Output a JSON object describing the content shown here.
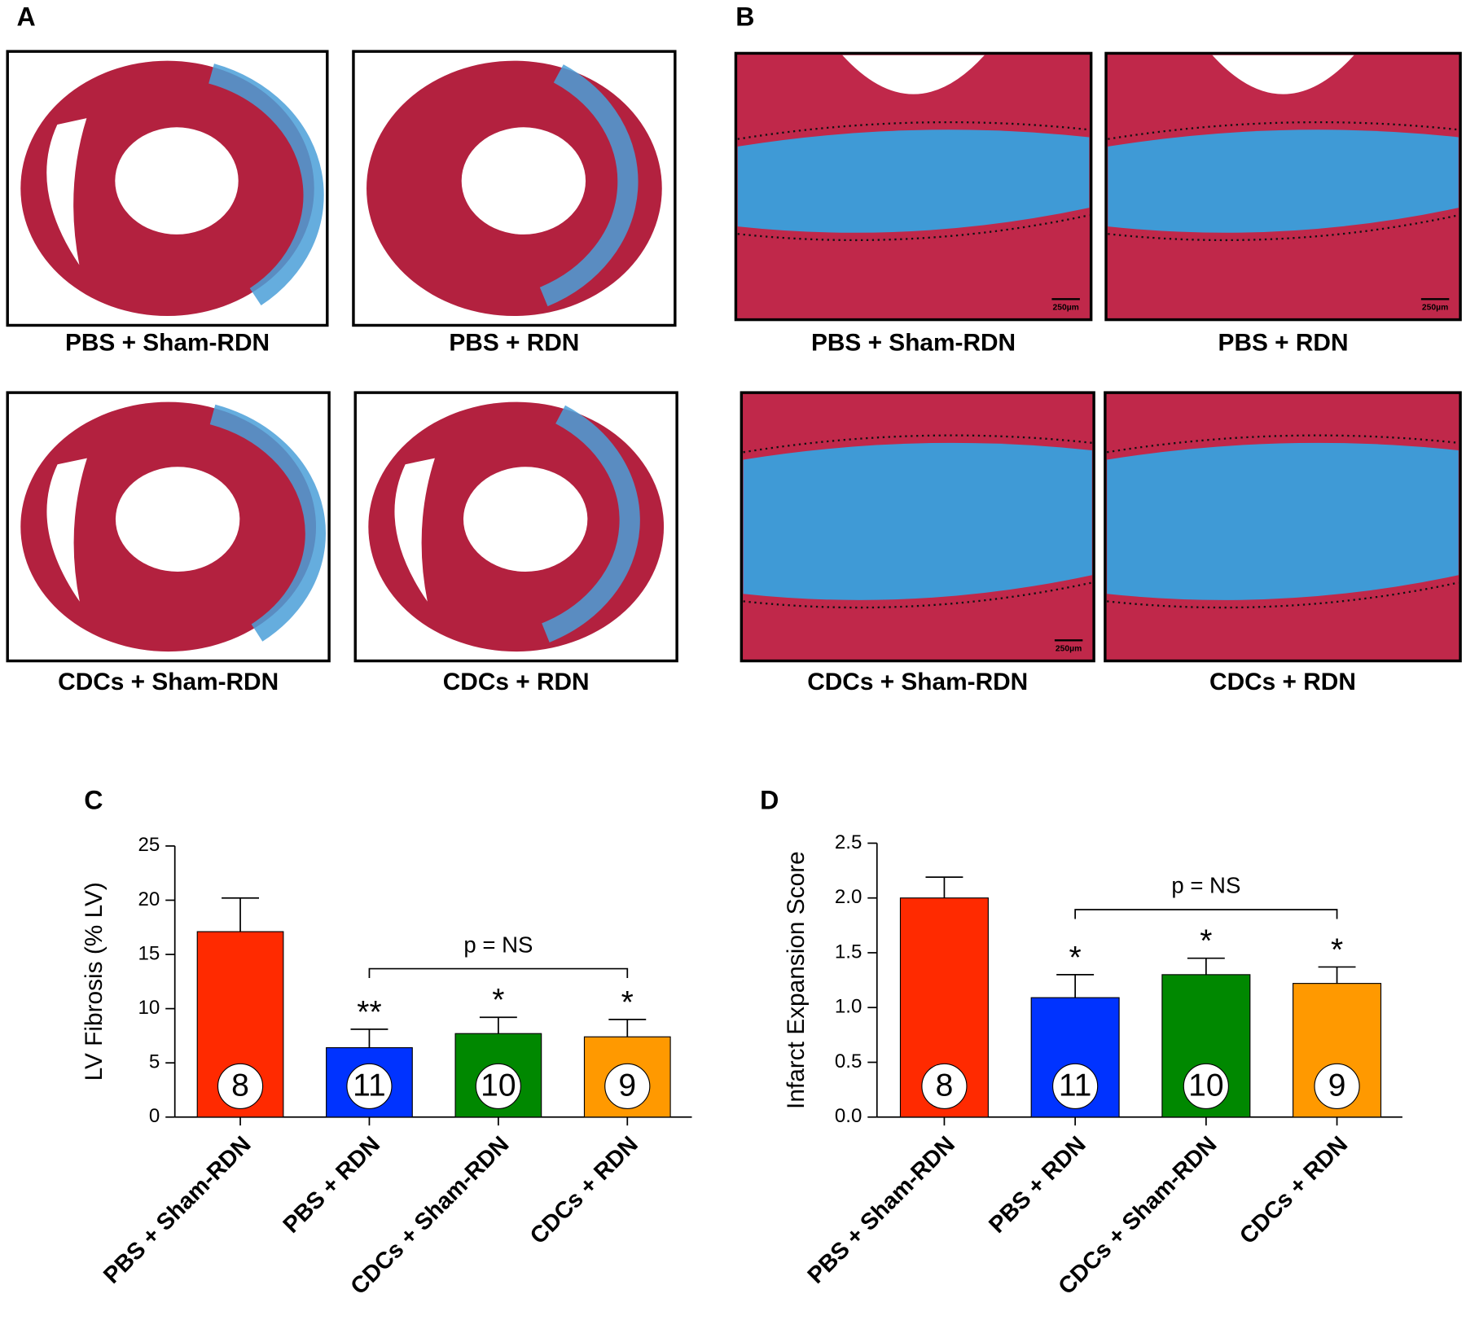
{
  "panels": [
    {
      "letter": "A",
      "captions": [
        "PBS + Sham-RDN",
        "PBS + RDN",
        "CDCs + Sham-RDN",
        "CDCs + RDN"
      ]
    },
    {
      "letter": "B",
      "captions": [
        "PBS + Sham-RDN",
        "PBS + RDN",
        "CDCs + Sham-RDN",
        "CDCs + RDN"
      ],
      "scale_bar": "250µm"
    }
  ],
  "chart_data": [
    {
      "type": "bar",
      "panel": "C",
      "y_label": "LV Fibrosis (% LV)",
      "categories": [
        "PBS + Sham-RDN",
        "PBS + RDN",
        "CDCs + Sham-RDN",
        "CDCs + RDN"
      ],
      "values": [
        17.1,
        6.4,
        7.7,
        7.4
      ],
      "errors": [
        3.1,
        1.7,
        1.5,
        1.6
      ],
      "n": [
        8,
        11,
        10,
        9
      ],
      "significance": [
        null,
        "**",
        "*",
        "*"
      ],
      "colors": [
        "#ff2a00",
        "#0033ff",
        "#008800",
        "#ff9900"
      ],
      "bracket": {
        "label": "p = NS",
        "span": [
          1,
          3
        ]
      },
      "ylim": [
        0,
        25
      ],
      "yticks": [
        0,
        5,
        10,
        15,
        20,
        25
      ]
    },
    {
      "type": "bar",
      "panel": "D",
      "y_label": "Infarct Expansion Score",
      "categories": [
        "PBS + Sham-RDN",
        "PBS + RDN",
        "CDCs + Sham-RDN",
        "CDCs + RDN"
      ],
      "values": [
        2.0,
        1.09,
        1.3,
        1.22
      ],
      "errors": [
        0.19,
        0.21,
        0.15,
        0.15
      ],
      "n": [
        8,
        11,
        10,
        9
      ],
      "significance": [
        null,
        "*",
        "*",
        "*"
      ],
      "colors": [
        "#ff2a00",
        "#0033ff",
        "#008800",
        "#ff9900"
      ],
      "bracket": {
        "label": "p = NS",
        "span": [
          1,
          3
        ]
      },
      "ylim": [
        0,
        2.5
      ],
      "yticks": [
        {
          "value": 0,
          "label": "0.0"
        },
        0.5,
        {
          "value": 1,
          "label": "1.0"
        },
        1.5,
        {
          "value": 2,
          "label": "2.0"
        },
        2.5
      ]
    }
  ]
}
